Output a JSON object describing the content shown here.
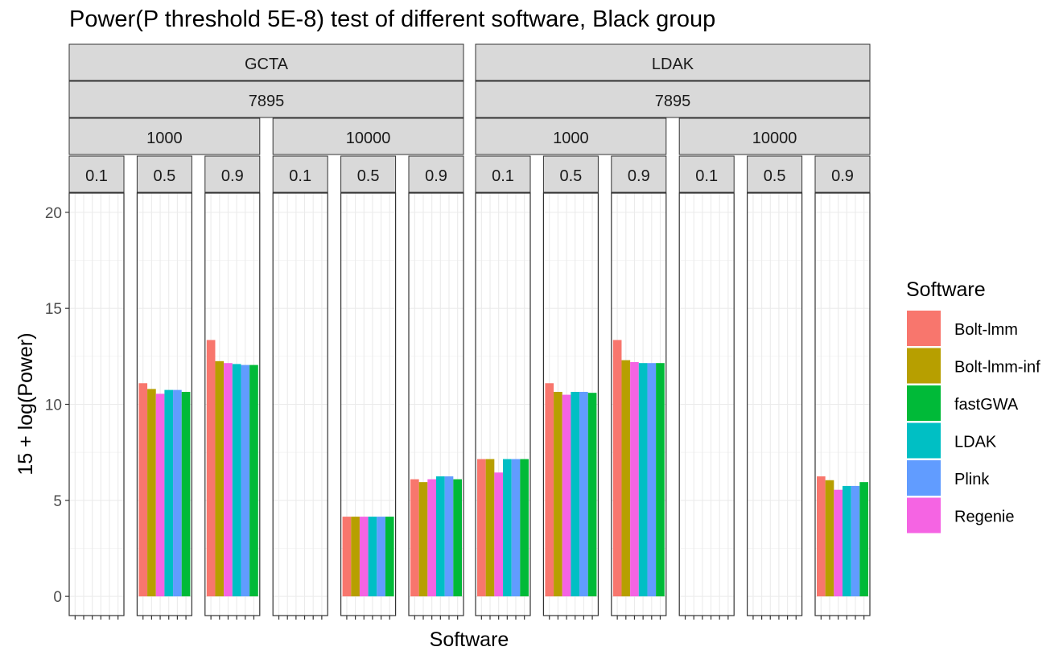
{
  "chart_data": {
    "type": "bar",
    "title": "Power(P threshold 5E-8) test of different software, Black group",
    "xlabel": "Software",
    "ylabel": "15 + log(Power)",
    "ylim": [
      -1,
      21
    ],
    "yticks": [
      0,
      5,
      10,
      15,
      20
    ],
    "grid": true,
    "legend_position": "right",
    "legend": {
      "title": "Software",
      "entries": [
        {
          "name": "Bolt-lmm",
          "color": "#F8766D"
        },
        {
          "name": "Bolt-lmm-inf",
          "color": "#B79F00"
        },
        {
          "name": "fastGWA",
          "color": "#00BA38"
        },
        {
          "name": "LDAK",
          "color": "#00BFC4"
        },
        {
          "name": "Plink",
          "color": "#619CFF"
        },
        {
          "name": "Regenie",
          "color": "#F564E3"
        }
      ]
    },
    "bar_order": [
      "Bolt-lmm",
      "Bolt-lmm-inf",
      "Regenie",
      "LDAK",
      "Plink",
      "fastGWA"
    ],
    "facets": [
      {
        "label": "GCTA",
        "sub": "7895",
        "groups": [
          {
            "label": "1000",
            "panels": [
              {
                "label": "0.1",
                "values": [
                  null,
                  null,
                  null,
                  null,
                  null,
                  null
                ]
              },
              {
                "label": "0.5",
                "values": [
                  11.1,
                  10.8,
                  10.55,
                  10.75,
                  10.75,
                  10.65
                ]
              },
              {
                "label": "0.9",
                "values": [
                  13.35,
                  12.25,
                  12.15,
                  12.1,
                  12.05,
                  12.05
                ]
              }
            ]
          },
          {
            "label": "10000",
            "panels": [
              {
                "label": "0.1",
                "values": [
                  null,
                  null,
                  null,
                  null,
                  null,
                  null
                ]
              },
              {
                "label": "0.5",
                "values": [
                  4.15,
                  4.15,
                  4.15,
                  4.15,
                  4.15,
                  4.15
                ]
              },
              {
                "label": "0.9",
                "values": [
                  6.1,
                  5.95,
                  6.1,
                  6.25,
                  6.25,
                  6.1
                ]
              }
            ]
          }
        ]
      },
      {
        "label": "LDAK",
        "sub": "7895",
        "groups": [
          {
            "label": "1000",
            "panels": [
              {
                "label": "0.1",
                "values": [
                  7.15,
                  7.15,
                  6.45,
                  7.15,
                  7.15,
                  7.15
                ]
              },
              {
                "label": "0.5",
                "values": [
                  11.1,
                  10.65,
                  10.5,
                  10.65,
                  10.65,
                  10.6
                ]
              },
              {
                "label": "0.9",
                "values": [
                  13.35,
                  12.3,
                  12.2,
                  12.15,
                  12.15,
                  12.15
                ]
              }
            ]
          },
          {
            "label": "10000",
            "panels": [
              {
                "label": "0.1",
                "values": [
                  null,
                  null,
                  null,
                  null,
                  null,
                  null
                ]
              },
              {
                "label": "0.5",
                "values": [
                  null,
                  null,
                  null,
                  null,
                  null,
                  null
                ]
              },
              {
                "label": "0.9",
                "values": [
                  6.25,
                  6.05,
                  5.55,
                  5.75,
                  5.75,
                  5.95
                ]
              }
            ]
          }
        ]
      }
    ]
  }
}
